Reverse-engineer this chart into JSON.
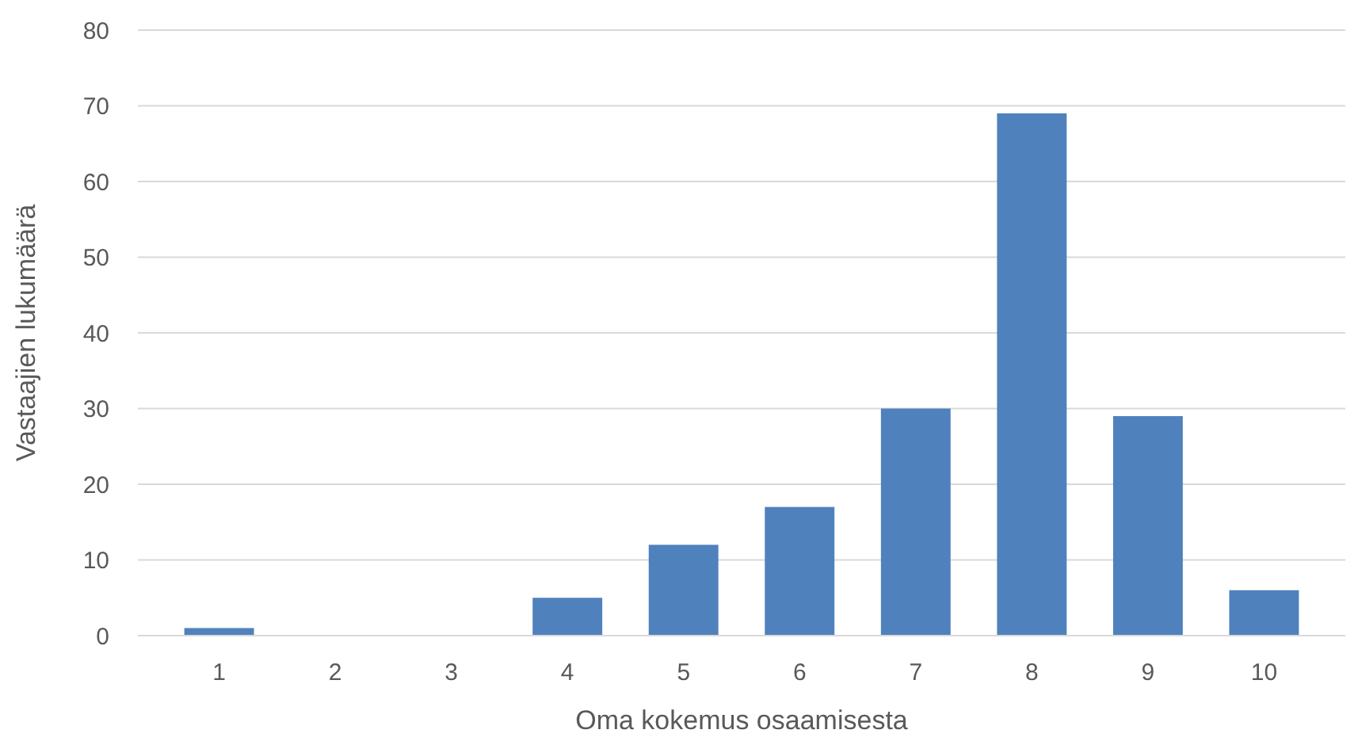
{
  "chart_data": {
    "type": "bar",
    "xlabel": "Oma kokemus osaamisesta",
    "ylabel": "Vastaajien lukumäärä",
    "categories": [
      "1",
      "2",
      "3",
      "4",
      "5",
      "6",
      "7",
      "8",
      "9",
      "10"
    ],
    "values": [
      1,
      0,
      0,
      5,
      12,
      17,
      30,
      69,
      29,
      6
    ],
    "color": "#4f81bd",
    "ylim": [
      0,
      80
    ],
    "yticks": [
      0,
      10,
      20,
      30,
      40,
      50,
      60,
      70,
      80
    ],
    "grid": "y"
  }
}
